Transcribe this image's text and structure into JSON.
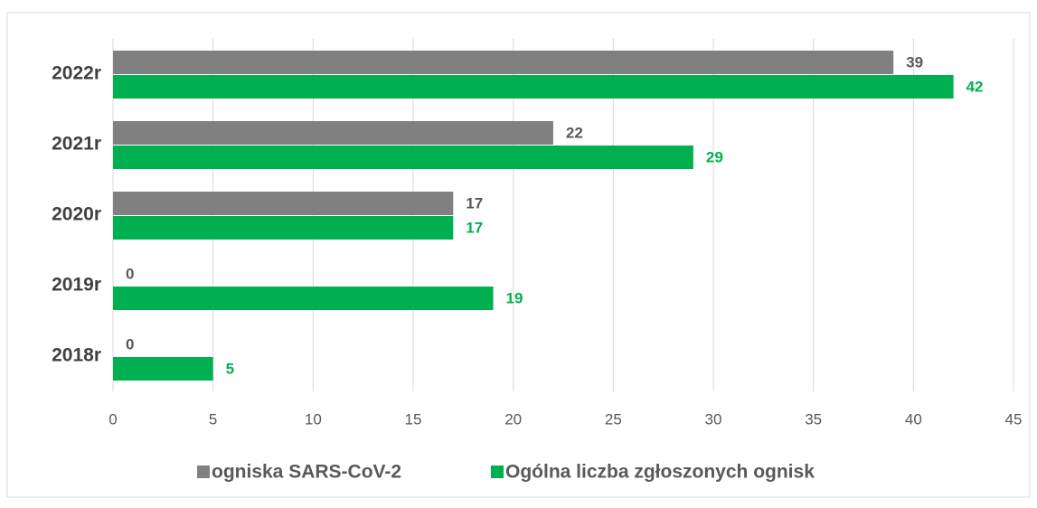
{
  "chart_data": {
    "type": "barh",
    "categories": [
      "2022r",
      "2021r",
      "2020r",
      "2019r",
      "2018r"
    ],
    "series": [
      {
        "name": "ogniska SARS-CoV-2",
        "color": "#808080",
        "values": [
          39,
          22,
          17,
          0,
          0
        ]
      },
      {
        "name": "Ogólna liczba zgłoszonych ognisk",
        "color": "#00b050",
        "values": [
          42,
          29,
          17,
          19,
          5
        ]
      }
    ],
    "xlim": [
      0,
      45
    ],
    "xticks": [
      0,
      5,
      10,
      15,
      20,
      25,
      30,
      35,
      40,
      45
    ],
    "grid": true,
    "legend": "bottom"
  }
}
